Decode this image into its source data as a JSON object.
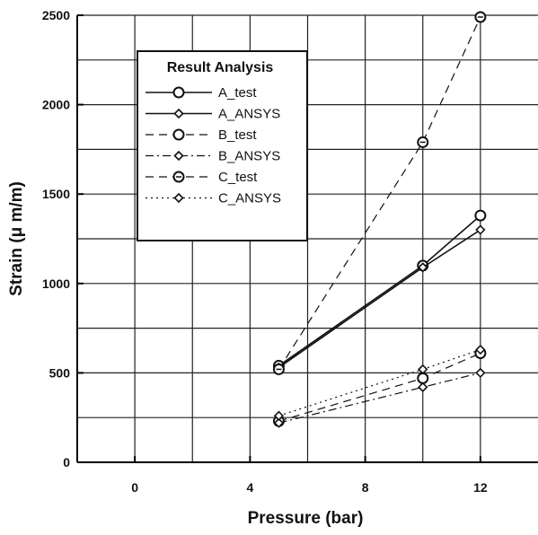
{
  "chart_data": {
    "type": "line",
    "title": "",
    "xlabel": "Pressure (bar)",
    "ylabel": "Strain (μ m/m)",
    "xlim": [
      -2,
      14
    ],
    "ylim": [
      0,
      2500
    ],
    "x_ticks": [
      0,
      4,
      8,
      12
    ],
    "x_tick_labels": [
      "0",
      "4",
      "8",
      "12"
    ],
    "y_ticks": [
      0,
      500,
      1000,
      1500,
      2000,
      2500
    ],
    "y_tick_labels": [
      "0",
      "500",
      "1000",
      "1500",
      "2000",
      "2500"
    ],
    "x_grid_step": 2,
    "y_grid_step": 250,
    "grid": true,
    "legend": {
      "title": "Result Analysis",
      "placement": "top-left"
    },
    "series": [
      {
        "name": "A_test",
        "marker": "circle",
        "line": "solid",
        "x": [
          5,
          10,
          12
        ],
        "y": [
          540,
          1100,
          1380
        ]
      },
      {
        "name": "A_ANSYS",
        "marker": "diamond",
        "line": "solid",
        "x": [
          5,
          10,
          12
        ],
        "y": [
          530,
          1090,
          1300
        ]
      },
      {
        "name": "B_test",
        "marker": "circle",
        "line": "dashed",
        "x": [
          5,
          10,
          12
        ],
        "y": [
          230,
          470,
          610
        ]
      },
      {
        "name": "B_ANSYS",
        "marker": "diamond",
        "line": "dash-dot",
        "x": [
          5,
          10,
          12
        ],
        "y": [
          220,
          420,
          500
        ]
      },
      {
        "name": "C_test",
        "marker": "circle-dot",
        "line": "dashed",
        "x": [
          5,
          10,
          12
        ],
        "y": [
          520,
          1790,
          2490
        ]
      },
      {
        "name": "C_ANSYS",
        "marker": "diamond",
        "line": "dotted",
        "x": [
          5,
          10,
          12
        ],
        "y": [
          260,
          520,
          630
        ]
      }
    ]
  }
}
